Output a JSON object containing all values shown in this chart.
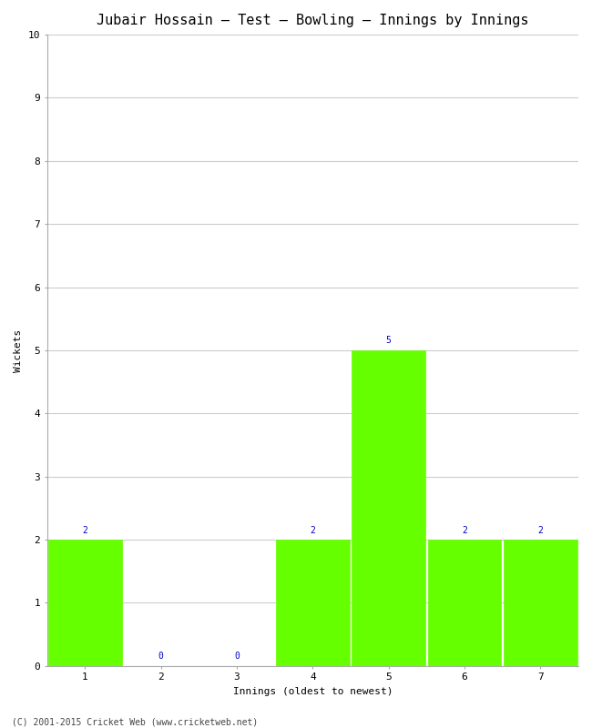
{
  "title": "Jubair Hossain – Test – Bowling – Innings by Innings",
  "xlabel": "Innings (oldest to newest)",
  "ylabel": "Wickets",
  "categories": [
    1,
    2,
    3,
    4,
    5,
    6,
    7
  ],
  "values": [
    2,
    0,
    0,
    2,
    5,
    2,
    2
  ],
  "bar_color": "#66ff00",
  "bar_edge_color": "#66ff00",
  "ylim": [
    0,
    10
  ],
  "yticks": [
    0,
    1,
    2,
    3,
    4,
    5,
    6,
    7,
    8,
    9,
    10
  ],
  "label_color": "#0000cc",
  "label_fontsize": 7,
  "title_fontsize": 11,
  "axis_label_fontsize": 8,
  "tick_fontsize": 8,
  "footer": "(C) 2001-2015 Cricket Web (www.cricketweb.net)",
  "footer_fontsize": 7,
  "background_color": "#ffffff",
  "grid_color": "#cccccc",
  "bar_width": 0.97
}
